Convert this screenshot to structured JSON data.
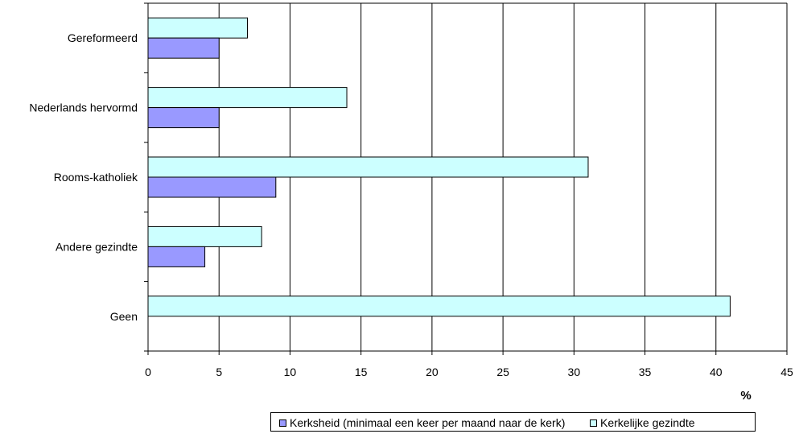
{
  "chart_data": {
    "type": "bar",
    "orientation": "horizontal",
    "categories": [
      "Gereformeerd",
      "Nederlands hervormd",
      "Rooms-katholiek",
      "Andere gezindte",
      "Geen"
    ],
    "series": [
      {
        "name": "Kerkelijke gezindte",
        "color": "#ccffff",
        "values": [
          7,
          14,
          31,
          8,
          41
        ]
      },
      {
        "name": "Kerksheid (minimaal een keer per maand naar de kerk)",
        "color": "#9999ff",
        "values": [
          5,
          5,
          9,
          4,
          0
        ]
      }
    ],
    "xlabel": "%",
    "xlim": [
      0,
      45
    ],
    "xticks": [
      "0",
      "5",
      "10",
      "15",
      "20",
      "25",
      "30",
      "35",
      "40",
      "45"
    ],
    "grid": "vertical",
    "legend": {
      "placement": "bottom",
      "entries": [
        {
          "label": "Kerksheid (minimaal een keer per maand naar de kerk)",
          "color": "#9999ff"
        },
        {
          "label": "Kerkelijke gezindte",
          "color": "#ccffff"
        }
      ]
    }
  }
}
